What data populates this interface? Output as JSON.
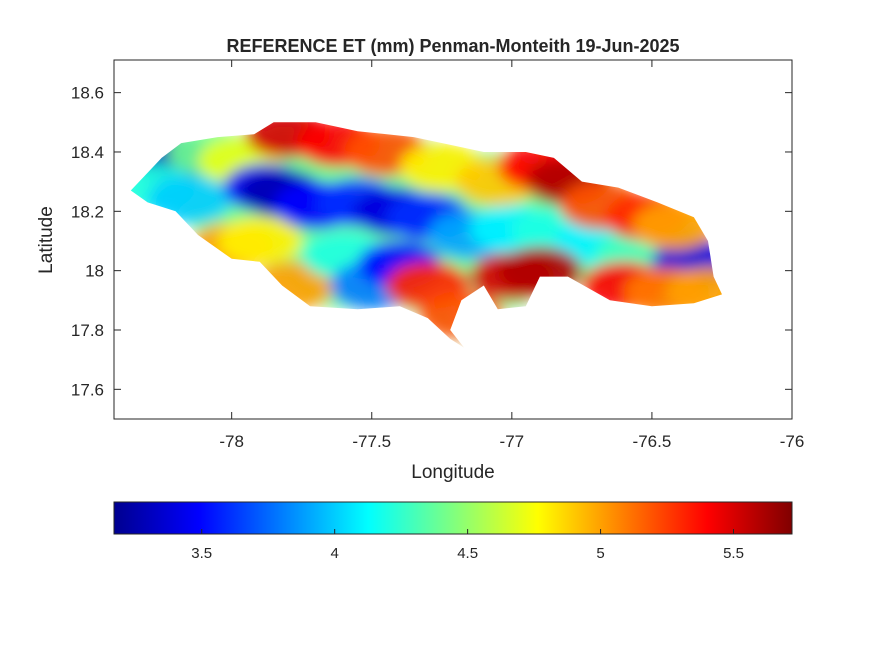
{
  "chart_data": {
    "type": "heatmap",
    "title": "REFERENCE ET (mm) Penman-Monteith 19-Jun-2025",
    "xlabel": "Longitude",
    "ylabel": "Latitude",
    "xlim": [
      -78.42,
      -76.0
    ],
    "ylim": [
      17.5,
      18.71
    ],
    "x_ticks": [
      -78,
      -77.5,
      -77,
      -76.5,
      -76
    ],
    "x_tick_labels": [
      "-78",
      "-77.5",
      "-77",
      "-76.5",
      "-76"
    ],
    "y_ticks": [
      17.6,
      17.8,
      18,
      18.2,
      18.4,
      18.6
    ],
    "y_tick_labels": [
      "17.6",
      "17.8",
      "18",
      "18.2",
      "18.4",
      "18.6"
    ],
    "grid": false,
    "colormap": "jet",
    "colorbar": {
      "orientation": "horizontal",
      "location": "below",
      "range": [
        3.17,
        5.72
      ],
      "ticks": [
        3.5,
        4,
        4.5,
        5,
        5.5
      ],
      "tick_labels": [
        "3.5",
        "4",
        "4.5",
        "5",
        "5.5"
      ]
    },
    "region_outline": [
      [
        -78.36,
        18.27
      ],
      [
        -78.3,
        18.33
      ],
      [
        -78.25,
        18.38
      ],
      [
        -78.18,
        18.43
      ],
      [
        -78.05,
        18.45
      ],
      [
        -77.92,
        18.46
      ],
      [
        -77.85,
        18.5
      ],
      [
        -77.7,
        18.5
      ],
      [
        -77.55,
        18.47
      ],
      [
        -77.35,
        18.45
      ],
      [
        -77.2,
        18.42
      ],
      [
        -77.1,
        18.4
      ],
      [
        -76.95,
        18.4
      ],
      [
        -76.85,
        18.38
      ],
      [
        -76.75,
        18.3
      ],
      [
        -76.62,
        18.28
      ],
      [
        -76.48,
        18.23
      ],
      [
        -76.35,
        18.18
      ],
      [
        -76.3,
        18.1
      ],
      [
        -76.28,
        17.98
      ],
      [
        -76.25,
        17.92
      ],
      [
        -76.35,
        17.89
      ],
      [
        -76.5,
        17.88
      ],
      [
        -76.65,
        17.9
      ],
      [
        -76.8,
        17.98
      ],
      [
        -76.9,
        17.98
      ],
      [
        -76.95,
        17.88
      ],
      [
        -77.05,
        17.87
      ],
      [
        -77.1,
        17.95
      ],
      [
        -77.18,
        17.9
      ],
      [
        -77.22,
        17.8
      ],
      [
        -77.17,
        17.74
      ],
      [
        -77.22,
        17.77
      ],
      [
        -77.3,
        17.84
      ],
      [
        -77.4,
        17.88
      ],
      [
        -77.55,
        17.87
      ],
      [
        -77.72,
        17.88
      ],
      [
        -77.82,
        17.95
      ],
      [
        -77.9,
        18.03
      ],
      [
        -78.0,
        18.04
      ],
      [
        -78.12,
        18.12
      ],
      [
        -78.2,
        18.2
      ],
      [
        -78.3,
        18.23
      ],
      [
        -78.36,
        18.27
      ]
    ],
    "field_samples": [
      {
        "lon": -78.22,
        "lat": 18.38,
        "value": 3.3
      },
      {
        "lon": -78.28,
        "lat": 18.28,
        "value": 4.2
      },
      {
        "lon": -78.15,
        "lat": 18.24,
        "value": 4.0
      },
      {
        "lon": -78.08,
        "lat": 18.4,
        "value": 4.4
      },
      {
        "lon": -77.97,
        "lat": 18.37,
        "value": 4.7
      },
      {
        "lon": -77.88,
        "lat": 18.28,
        "value": 3.5
      },
      {
        "lon": -77.82,
        "lat": 18.26,
        "value": 3.3
      },
      {
        "lon": -77.7,
        "lat": 18.22,
        "value": 3.5
      },
      {
        "lon": -77.55,
        "lat": 18.23,
        "value": 3.6
      },
      {
        "lon": -77.42,
        "lat": 18.2,
        "value": 3.4
      },
      {
        "lon": -77.3,
        "lat": 18.18,
        "value": 3.6
      },
      {
        "lon": -77.15,
        "lat": 18.12,
        "value": 3.9
      },
      {
        "lon": -77.0,
        "lat": 18.14,
        "value": 4.1
      },
      {
        "lon": -76.85,
        "lat": 18.13,
        "value": 4.2
      },
      {
        "lon": -76.7,
        "lat": 18.1,
        "value": 4.1
      },
      {
        "lon": -76.55,
        "lat": 18.05,
        "value": 4.3
      },
      {
        "lon": -76.35,
        "lat": 18.03,
        "value": 3.4
      },
      {
        "lon": -77.8,
        "lat": 18.46,
        "value": 5.5
      },
      {
        "lon": -77.62,
        "lat": 18.43,
        "value": 5.4
      },
      {
        "lon": -77.45,
        "lat": 18.4,
        "value": 5.2
      },
      {
        "lon": -77.25,
        "lat": 18.35,
        "value": 4.8
      },
      {
        "lon": -77.05,
        "lat": 18.3,
        "value": 4.9
      },
      {
        "lon": -76.9,
        "lat": 18.35,
        "value": 5.4
      },
      {
        "lon": -76.8,
        "lat": 18.3,
        "value": 5.6
      },
      {
        "lon": -76.68,
        "lat": 18.22,
        "value": 5.2
      },
      {
        "lon": -76.52,
        "lat": 18.18,
        "value": 5.3
      },
      {
        "lon": -76.42,
        "lat": 18.15,
        "value": 5.0
      },
      {
        "lon": -78.0,
        "lat": 18.08,
        "value": 5.0
      },
      {
        "lon": -77.9,
        "lat": 18.1,
        "value": 4.8
      },
      {
        "lon": -77.78,
        "lat": 17.95,
        "value": 5.0
      },
      {
        "lon": -77.6,
        "lat": 18.05,
        "value": 4.2
      },
      {
        "lon": -77.5,
        "lat": 17.95,
        "value": 3.8
      },
      {
        "lon": -77.4,
        "lat": 18.02,
        "value": 3.5
      },
      {
        "lon": -77.3,
        "lat": 17.95,
        "value": 5.3
      },
      {
        "lon": -77.18,
        "lat": 17.85,
        "value": 5.2
      },
      {
        "lon": -77.0,
        "lat": 17.98,
        "value": 5.5
      },
      {
        "lon": -76.9,
        "lat": 18.0,
        "value": 5.6
      },
      {
        "lon": -76.6,
        "lat": 17.95,
        "value": 5.4
      },
      {
        "lon": -76.45,
        "lat": 17.93,
        "value": 5.1
      },
      {
        "lon": -76.3,
        "lat": 17.93,
        "value": 5.0
      }
    ]
  }
}
